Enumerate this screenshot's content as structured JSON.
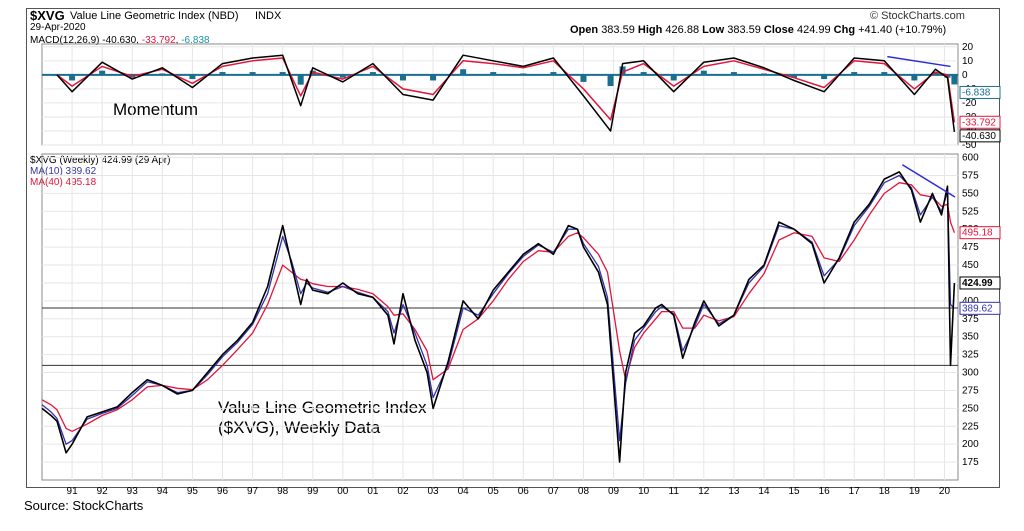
{
  "header": {
    "symbol": "$XVG",
    "index_name": "Value Line Geometric Index (NBD)",
    "exchange": "INDX",
    "date": "29-Apr-2020",
    "quote_labels": {
      "open": "Open",
      "high": "High",
      "low": "Low",
      "close": "Close",
      "chg": "Chg"
    },
    "open": "383.59",
    "high": "426.88",
    "low": "383.59",
    "close": "424.99",
    "chg": "+41.40 (+10.79%)",
    "copyright": "© StockCharts.com"
  },
  "macd": {
    "legend_name": "MACD(12,26,9)",
    "legend_macd": "-40.630",
    "legend_signal": "-33.792",
    "legend_hist": "-6.838",
    "annotation": "Momentum",
    "right_labels": {
      "hist": "-6.838",
      "signal": "-33.792",
      "macd": "-40.630"
    }
  },
  "price": {
    "legend_series": "$XVG (Weekly) 424.99 (29 Apr)",
    "legend_ma10": "MA(10) 389.62",
    "legend_ma40": "MA(40) 495.18",
    "right_labels": {
      "ma40": "495.18",
      "close": "424.99",
      "ma10": "389.62"
    },
    "annotation_line1": "Value Line Geometric Index",
    "annotation_line2": "($XVG), Weekly Data"
  },
  "source": "Source: StockCharts",
  "colors": {
    "price": "#000000",
    "ma10": "#3333aa",
    "ma40": "#e0163c",
    "hist": "#1a6f8f",
    "trend": "#2b2bd6",
    "grid": "#e6e6e6",
    "hline": "#333333"
  },
  "chart_data": [
    {
      "type": "line",
      "title": "MACD(12,26,9)",
      "y_ticks": [
        20,
        10,
        0,
        -10,
        -20,
        -30,
        -40,
        -50
      ],
      "ylim": [
        -50,
        22
      ],
      "x": [
        1990.5,
        1991,
        1992,
        1993,
        1994,
        1995,
        1996,
        1997,
        1998,
        1998.6,
        1999,
        2000,
        2001,
        2002,
        2003,
        2004,
        2005,
        2006,
        2007,
        2008,
        2008.9,
        2009.3,
        2010,
        2011,
        2012,
        2013,
        2014,
        2015,
        2016,
        2017,
        2018,
        2019,
        2019.7,
        2020.1,
        2020.33
      ],
      "series": [
        {
          "name": "MACD",
          "values": [
            0,
            -12,
            9,
            -3,
            5,
            -9,
            8,
            12,
            14,
            -22,
            5,
            -5,
            8,
            -14,
            -18,
            14,
            10,
            6,
            12,
            -15,
            -40,
            8,
            10,
            -12,
            9,
            12,
            5,
            -4,
            -12,
            12,
            10,
            -14,
            4,
            -2,
            -40.63
          ]
        },
        {
          "name": "Signal",
          "values": [
            0,
            -8,
            6,
            -1,
            4,
            -6,
            6,
            10,
            12,
            -15,
            2,
            -3,
            6,
            -10,
            -14,
            10,
            8,
            5,
            10,
            -10,
            -32,
            2,
            8,
            -8,
            6,
            10,
            4,
            -2,
            -9,
            10,
            8,
            -10,
            2,
            0,
            -33.792
          ]
        },
        {
          "name": "Histogram",
          "values": [
            0,
            -4,
            3,
            -2,
            1,
            -3,
            2,
            2,
            2,
            -7,
            3,
            -2,
            2,
            -4,
            -4,
            4,
            2,
            1,
            2,
            -5,
            -8,
            6,
            2,
            -4,
            3,
            2,
            1,
            -2,
            -3,
            2,
            2,
            -4,
            2,
            -2,
            -6.838
          ]
        }
      ],
      "trendline": {
        "x": [
          2018.1,
          2020.2
        ],
        "y": [
          13,
          6
        ]
      }
    },
    {
      "type": "line",
      "title": "$XVG (Weekly)",
      "y_ticks": [
        600,
        575,
        550,
        525,
        500,
        475,
        450,
        425,
        400,
        375,
        350,
        325,
        300,
        275,
        250,
        225,
        200,
        175
      ],
      "ylim": [
        150,
        605
      ],
      "x_ticks": [
        "91",
        "92",
        "93",
        "94",
        "95",
        "96",
        "97",
        "98",
        "99",
        "00",
        "01",
        "02",
        "03",
        "04",
        "05",
        "06",
        "07",
        "08",
        "09",
        "10",
        "11",
        "12",
        "13",
        "14",
        "15",
        "16",
        "17",
        "18",
        "19",
        "20"
      ],
      "x_tick_values": [
        1991,
        1992,
        1993,
        1994,
        1995,
        1996,
        1997,
        1998,
        1999,
        2000,
        2001,
        2002,
        2003,
        2004,
        2005,
        2006,
        2007,
        2008,
        2009,
        2010,
        2011,
        2012,
        2013,
        2014,
        2015,
        2016,
        2017,
        2018,
        2019,
        2020
      ],
      "xlim": [
        1990.0,
        2020.45
      ],
      "x": [
        1990.0,
        1990.3,
        1990.5,
        1990.8,
        1991,
        1991.5,
        1992,
        1992.5,
        1993,
        1993.5,
        1994,
        1994.5,
        1995,
        1995.5,
        1996,
        1996.5,
        1997,
        1997.5,
        1998,
        1998.3,
        1998.6,
        1998.8,
        1999,
        1999.5,
        2000,
        2000.5,
        2001,
        2001.5,
        2001.7,
        2002,
        2002.4,
        2002.8,
        2003,
        2003.5,
        2004,
        2004.5,
        2005,
        2005.5,
        2006,
        2006.5,
        2007,
        2007.5,
        2007.8,
        2008,
        2008.5,
        2008.8,
        2009.2,
        2009.4,
        2009.7,
        2010,
        2010.4,
        2010.6,
        2011,
        2011.3,
        2011.7,
        2012,
        2012.5,
        2013,
        2013.5,
        2014,
        2014.5,
        2015,
        2015.6,
        2016,
        2016.5,
        2017,
        2017.5,
        2018,
        2018.5,
        2018.9,
        2019.2,
        2019.6,
        2019.9,
        2020.1,
        2020.2,
        2020.33
      ],
      "series": [
        {
          "name": "$XVG",
          "values": [
            250,
            240,
            232,
            188,
            200,
            238,
            245,
            252,
            272,
            290,
            282,
            270,
            275,
            300,
            325,
            345,
            370,
            420,
            505,
            450,
            395,
            430,
            415,
            410,
            425,
            410,
            405,
            380,
            340,
            410,
            345,
            300,
            250,
            315,
            400,
            375,
            415,
            440,
            465,
            480,
            465,
            505,
            500,
            475,
            440,
            395,
            175,
            300,
            355,
            365,
            390,
            395,
            380,
            320,
            370,
            400,
            365,
            380,
            430,
            450,
            510,
            500,
            480,
            425,
            460,
            510,
            535,
            570,
            580,
            555,
            510,
            550,
            520,
            560,
            310,
            424.99
          ]
        },
        {
          "name": "MA(10)",
          "values": [
            255,
            245,
            236,
            200,
            205,
            235,
            243,
            250,
            268,
            287,
            282,
            272,
            275,
            297,
            322,
            342,
            367,
            410,
            490,
            455,
            410,
            425,
            418,
            412,
            420,
            412,
            405,
            385,
            355,
            395,
            355,
            310,
            265,
            310,
            390,
            380,
            410,
            438,
            462,
            478,
            468,
            500,
            500,
            480,
            448,
            405,
            205,
            285,
            345,
            362,
            385,
            392,
            382,
            330,
            365,
            395,
            368,
            380,
            425,
            448,
            505,
            500,
            482,
            435,
            458,
            505,
            532,
            565,
            575,
            558,
            520,
            545,
            525,
            552,
            395,
            389.62
          ]
        },
        {
          "name": "MA(40)",
          "values": [
            262,
            255,
            248,
            222,
            218,
            228,
            240,
            248,
            262,
            280,
            282,
            278,
            276,
            290,
            310,
            332,
            355,
            395,
            450,
            440,
            430,
            428,
            424,
            420,
            420,
            416,
            410,
            392,
            380,
            382,
            360,
            330,
            290,
            305,
            360,
            375,
            400,
            430,
            455,
            470,
            468,
            490,
            495,
            488,
            465,
            440,
            330,
            290,
            335,
            355,
            375,
            385,
            385,
            362,
            362,
            380,
            372,
            378,
            410,
            438,
            485,
            495,
            490,
            460,
            455,
            485,
            520,
            550,
            565,
            562,
            548,
            545,
            532,
            535,
            510,
            495.18
          ]
        }
      ],
      "hlines": [
        390,
        310
      ],
      "trendline": {
        "x": [
          2018.6,
          2020.35
        ],
        "y": [
          590,
          545
        ]
      }
    }
  ]
}
